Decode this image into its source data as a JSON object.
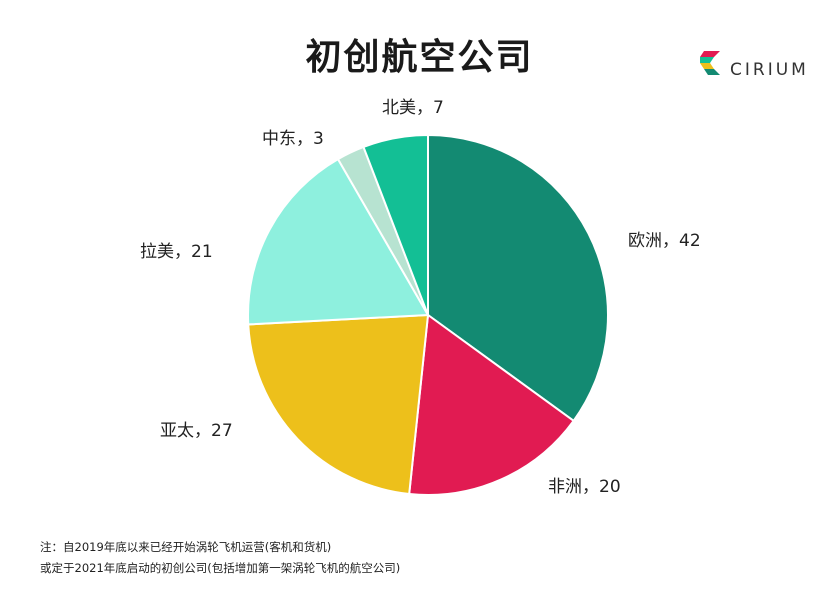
{
  "title": "初创航空公司",
  "logo": {
    "text": "CIRIUM",
    "icon": "cirium-logo-icon"
  },
  "chart_data": {
    "type": "pie",
    "title": "初创航空公司",
    "start_angle_deg": 0,
    "direction": "clockwise",
    "slices": [
      {
        "label": "欧洲",
        "value": 42,
        "display": "欧洲，42",
        "color": "#138A72"
      },
      {
        "label": "非洲",
        "value": 20,
        "display": "非洲，20",
        "color": "#E11B52"
      },
      {
        "label": "亚太",
        "value": 27,
        "display": "亚太，27",
        "color": "#EDC01B"
      },
      {
        "label": "拉美",
        "value": 21,
        "display": "拉美，21",
        "color": "#8EF0DE"
      },
      {
        "label": "中东",
        "value": 3,
        "display": "中东，3",
        "color": "#B7E3D1"
      },
      {
        "label": "北美",
        "value": 7,
        "display": "北美，7",
        "color": "#13BF95"
      }
    ]
  },
  "footnotes": [
    "注：自2019年底以来已经开始涡轮飞机运营(客机和货机)",
    "或定于2021年底启动的初创公司(包括增加第一架涡轮飞机的航空公司)"
  ]
}
